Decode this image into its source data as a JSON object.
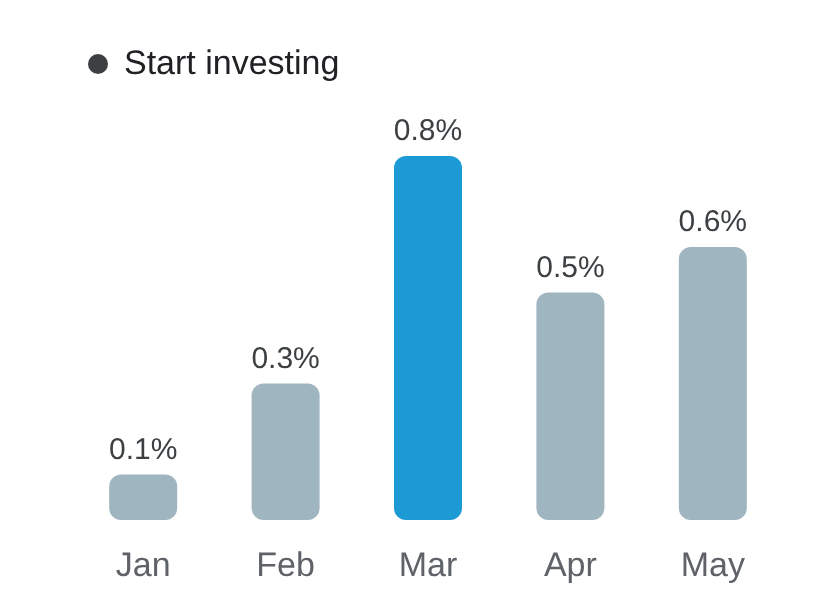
{
  "chart_data": {
    "type": "bar",
    "categories": [
      "Jan",
      "Feb",
      "Mar",
      "Apr",
      "May"
    ],
    "legend": "top left",
    "series": [
      {
        "name": "Start investing",
        "color": "#3c4043",
        "colors": [
          "#9fb5bf",
          "#9fb5bf",
          "#1b9ad6",
          "#9fb5bf",
          "#9fb5bf"
        ],
        "values": [
          0.1,
          0.3,
          0.8,
          0.5,
          0.6
        ],
        "value_labels": [
          "0.1%",
          "0.3%",
          "0.8%",
          "0.5%",
          "0.6%"
        ]
      }
    ]
  }
}
